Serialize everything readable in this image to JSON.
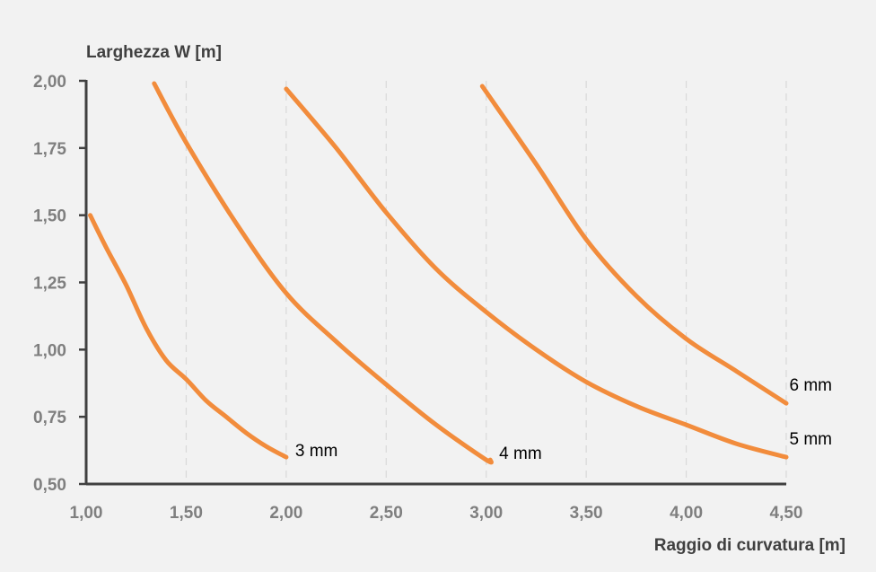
{
  "chart_data": {
    "type": "line",
    "ylabel": "Larghezza W [m]",
    "xlabel": "Raggio di curvatura [m]",
    "xlim": [
      1.0,
      4.5
    ],
    "ylim": [
      0.5,
      2.0
    ],
    "x_ticks": [
      "1,00",
      "1,50",
      "2,00",
      "2,50",
      "3,00",
      "3,50",
      "4,00",
      "4,50"
    ],
    "y_ticks": [
      "0,50",
      "0,75",
      "1,00",
      "1,25",
      "1,50",
      "1,75",
      "2,00"
    ],
    "grid": "vertical-dashed",
    "line_color": "#f28c3c",
    "series": [
      {
        "name": "3 mm",
        "x": [
          1.02,
          1.1,
          1.2,
          1.3,
          1.4,
          1.5,
          1.6,
          1.7,
          1.8,
          1.9,
          2.0
        ],
        "y": [
          1.5,
          1.38,
          1.24,
          1.08,
          0.96,
          0.89,
          0.81,
          0.75,
          0.69,
          0.64,
          0.6
        ]
      },
      {
        "name": "4 mm",
        "x": [
          1.34,
          1.5,
          1.75,
          2.0,
          2.25,
          2.5,
          2.75,
          3.0,
          3.02
        ],
        "y": [
          1.99,
          1.77,
          1.47,
          1.21,
          1.03,
          0.87,
          0.72,
          0.59,
          0.59
        ]
      },
      {
        "name": "5 mm",
        "x": [
          2.0,
          2.25,
          2.5,
          2.75,
          3.0,
          3.25,
          3.5,
          3.75,
          4.0,
          4.25,
          4.5
        ],
        "y": [
          1.97,
          1.75,
          1.51,
          1.3,
          1.14,
          1.0,
          0.88,
          0.79,
          0.72,
          0.65,
          0.6
        ]
      },
      {
        "name": "6 mm",
        "x": [
          2.98,
          3.25,
          3.5,
          3.75,
          4.0,
          4.25,
          4.5
        ],
        "y": [
          1.98,
          1.69,
          1.41,
          1.2,
          1.04,
          0.92,
          0.8
        ]
      }
    ]
  }
}
